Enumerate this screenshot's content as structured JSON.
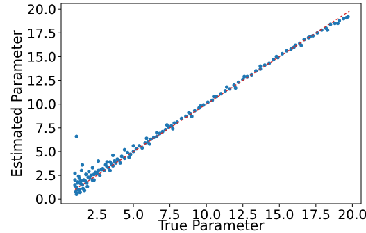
{
  "chart_data": {
    "type": "scatter",
    "title": "",
    "xlabel": "True Parameter",
    "ylabel": "Estimated Parameter",
    "xlim": [
      0.05,
      20.6
    ],
    "ylim": [
      -0.5,
      20.6
    ],
    "xticks": [
      2.5,
      5.0,
      7.5,
      10.0,
      12.5,
      15.0,
      17.5,
      20.0
    ],
    "yticks": [
      0.0,
      2.5,
      5.0,
      7.5,
      10.0,
      12.5,
      15.0,
      17.5,
      20.0
    ],
    "xtick_labels": [
      "2.5",
      "5.0",
      "7.5",
      "10.0",
      "12.5",
      "15.0",
      "17.5",
      "20.0"
    ],
    "ytick_labels": [
      "0.0",
      "2.5",
      "5.0",
      "7.5",
      "10.0",
      "12.5",
      "15.0",
      "17.5",
      "20.0"
    ],
    "grid": false,
    "marker_color": "#1f77b4",
    "reference_line": {
      "from": [
        1.0,
        1.0
      ],
      "to": [
        19.8,
        19.8
      ],
      "color": "#d62728",
      "style": "dashed"
    },
    "series": [
      {
        "x": [
          1.0,
          1.1,
          1.2,
          1.3,
          1.4,
          1.5,
          1.6,
          1.7,
          1.8,
          1.9,
          2.0,
          2.1,
          2.2,
          2.3,
          2.4,
          2.5,
          2.6,
          2.7,
          2.8,
          2.9,
          3.0,
          3.1,
          3.2,
          3.3,
          3.4,
          3.5,
          3.6,
          3.7,
          3.8,
          3.9,
          4.0,
          4.2,
          4.4,
          4.6,
          4.8,
          5.0,
          5.2,
          5.4,
          5.6,
          5.8,
          6.0,
          6.2,
          6.4,
          6.6,
          6.8,
          7.0,
          7.2,
          7.4,
          7.6,
          7.8,
          8.0,
          8.3,
          8.6,
          8.9,
          9.2,
          9.5,
          9.8,
          10.1,
          10.4,
          10.7,
          11.0,
          11.3,
          11.6,
          11.9,
          12.2,
          12.5,
          12.8,
          13.1,
          13.4,
          13.7,
          14.0,
          14.3,
          14.6,
          14.9,
          15.2,
          15.5,
          15.8,
          16.1,
          16.4,
          16.7,
          17.0,
          17.3,
          17.6,
          17.9,
          18.2,
          18.5,
          18.8,
          19.1,
          19.4,
          19.7,
          1.05,
          1.15,
          1.25,
          1.35,
          1.45,
          1.55,
          1.65,
          1.75,
          1.85,
          1.95,
          1.0,
          1.0,
          1.1,
          1.2,
          1.3,
          1.0,
          1.1,
          1.2,
          1.5,
          2.2,
          2.6,
          3.2,
          3.6,
          4.4,
          5.0,
          5.9,
          6.6,
          7.3,
          8.8,
          9.6,
          10.5,
          11.4,
          12.6,
          13.7,
          14.8,
          16.0,
          17.1,
          18.3,
          19.0,
          19.6,
          1.4,
          2.3,
          3.4,
          4.1,
          4.7,
          6.1,
          7.7,
          9.0,
          12.0,
          16.5
        ],
        "y": [
          1.4,
          1.2,
          1.8,
          1.0,
          1.6,
          1.5,
          2.0,
          1.9,
          1.7,
          2.3,
          2.2,
          2.5,
          2.0,
          2.6,
          2.8,
          2.7,
          3.0,
          2.5,
          3.1,
          3.2,
          3.0,
          3.6,
          3.4,
          3.3,
          3.9,
          3.7,
          3.5,
          4.0,
          3.8,
          4.2,
          4.1,
          4.5,
          4.3,
          4.9,
          4.7,
          5.0,
          5.3,
          5.6,
          5.4,
          5.9,
          6.0,
          6.3,
          6.5,
          6.6,
          6.9,
          7.1,
          7.3,
          7.6,
          7.7,
          8.0,
          8.1,
          8.5,
          8.7,
          9.0,
          9.3,
          9.6,
          9.9,
          10.2,
          10.4,
          10.8,
          11.1,
          11.4,
          11.6,
          12.0,
          12.3,
          12.6,
          12.9,
          13.1,
          13.5,
          13.7,
          14.1,
          14.3,
          14.7,
          14.9,
          15.3,
          15.6,
          15.8,
          16.2,
          16.4,
          16.8,
          17.0,
          17.2,
          17.5,
          17.8,
          18.0,
          18.4,
          18.5,
          18.8,
          19.0,
          19.2,
          0.8,
          0.6,
          2.4,
          0.7,
          3.0,
          1.1,
          0.9,
          2.6,
          1.3,
          2.9,
          2.0,
          2.7,
          0.5,
          1.7,
          2.2,
          1.5,
          6.6,
          1.0,
          3.6,
          3.3,
          4.0,
          3.9,
          4.6,
          5.2,
          5.6,
          6.4,
          7.0,
          7.8,
          9.1,
          9.8,
          10.8,
          11.8,
          12.9,
          14.0,
          15.0,
          16.0,
          17.1,
          17.8,
          18.5,
          19.1,
          1.9,
          2.0,
          3.0,
          3.8,
          4.4,
          5.8,
          7.4,
          8.7,
          11.7,
          16.2
        ]
      }
    ]
  }
}
